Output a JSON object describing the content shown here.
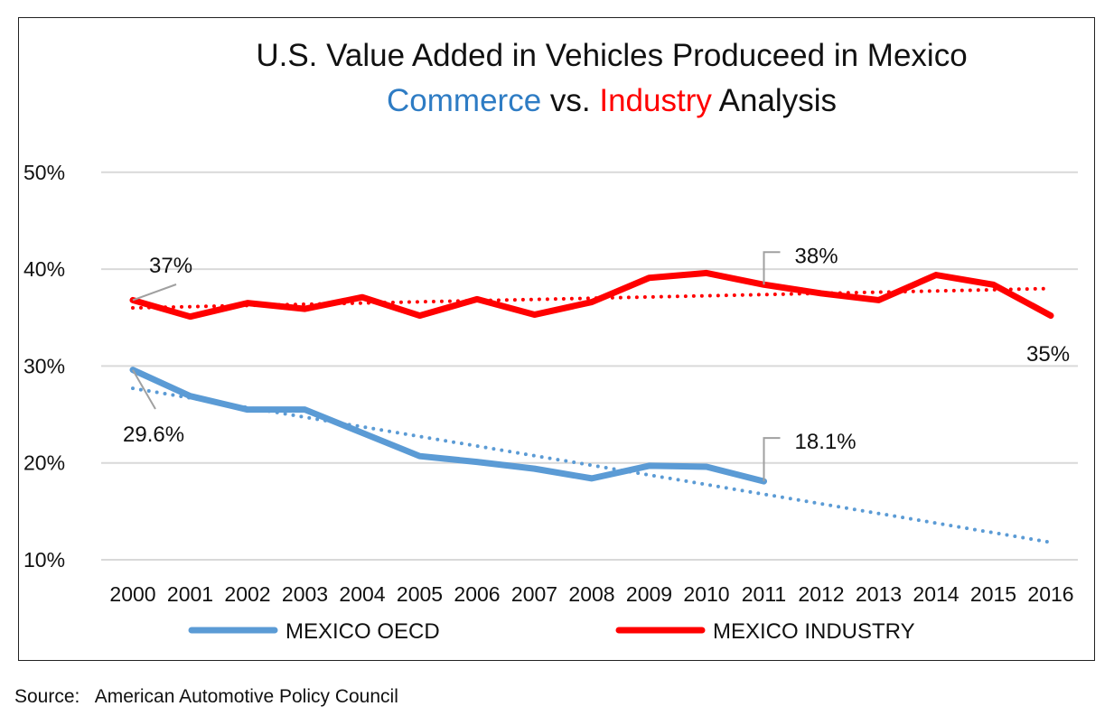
{
  "chart_data": {
    "type": "line",
    "title": "U.S. Value Added in Vehicles Produceed in Mexico",
    "subtitle": {
      "part1": "Commerce",
      "part2": " vs. ",
      "part3": "Industry",
      "part4": " Analysis"
    },
    "subtitle_colors": {
      "commerce": "#2E7CC4",
      "industry": "#FF0000"
    },
    "xlabel": "",
    "ylabel": "",
    "categories": [
      "2000",
      "2001",
      "2002",
      "2003",
      "2004",
      "2005",
      "2006",
      "2007",
      "2008",
      "2009",
      "2010",
      "2011",
      "2012",
      "2013",
      "2014",
      "2015",
      "2016"
    ],
    "y_ticks": [
      "10%",
      "20%",
      "30%",
      "40%",
      "50%"
    ],
    "ylim": [
      10,
      50
    ],
    "grid": true,
    "legend_position": "bottom",
    "series": [
      {
        "name": "MEXICO OECD",
        "color": "#5B9BD5",
        "values": [
          29.6,
          26.9,
          25.5,
          25.5,
          23.1,
          20.7,
          20.1,
          19.4,
          18.4,
          19.7,
          19.6,
          18.1,
          null,
          null,
          null,
          null,
          null
        ],
        "trendline": {
          "style": "dotted",
          "from": 27.7,
          "to": 11.8
        }
      },
      {
        "name": "MEXICO INDUSTRY",
        "color": "#FF0000",
        "values": [
          36.8,
          35.1,
          36.5,
          35.9,
          37.1,
          35.2,
          36.9,
          35.3,
          36.6,
          39.1,
          39.6,
          38.4,
          37.5,
          36.8,
          39.4,
          38.4,
          35.2
        ],
        "trendline": {
          "style": "dotted",
          "from": 36.0,
          "to": 38.0
        }
      }
    ],
    "annotations": [
      {
        "text": "37%",
        "series": 1,
        "year": "2000"
      },
      {
        "text": "38%",
        "series": 1,
        "year": "2011"
      },
      {
        "text": "35%",
        "series": 1,
        "year": "2016"
      },
      {
        "text": "29.6%",
        "series": 0,
        "year": "2000"
      },
      {
        "text": "18.1%",
        "series": 0,
        "year": "2011"
      }
    ]
  },
  "source": "Source:   American Automotive Policy Council"
}
